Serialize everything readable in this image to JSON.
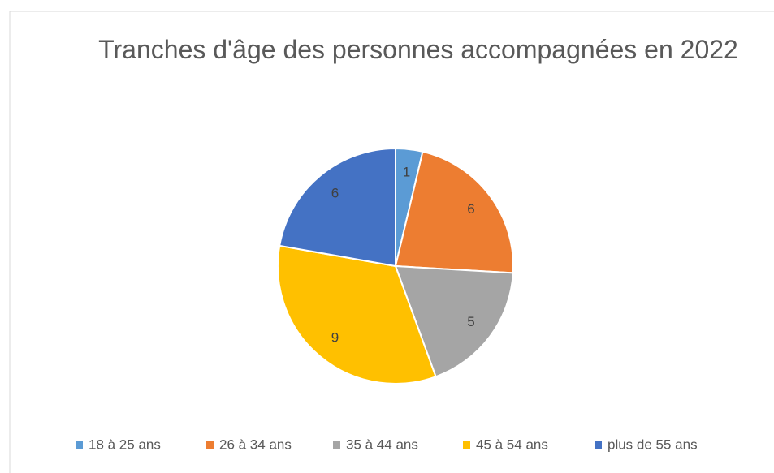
{
  "chart_data": {
    "type": "pie",
    "title": "Tranches d'âge des personnes accompagnées en 2022",
    "categories": [
      "18 à 25 ans",
      "26 à 34 ans",
      "35 à 44 ans",
      "45 à 54 ans",
      "plus de 55 ans"
    ],
    "values": [
      1,
      6,
      5,
      9,
      6
    ],
    "colors": [
      "#5b9bd5",
      "#ed7d31",
      "#a5a5a5",
      "#ffc000",
      "#4472c4"
    ],
    "legend": "bottom"
  }
}
